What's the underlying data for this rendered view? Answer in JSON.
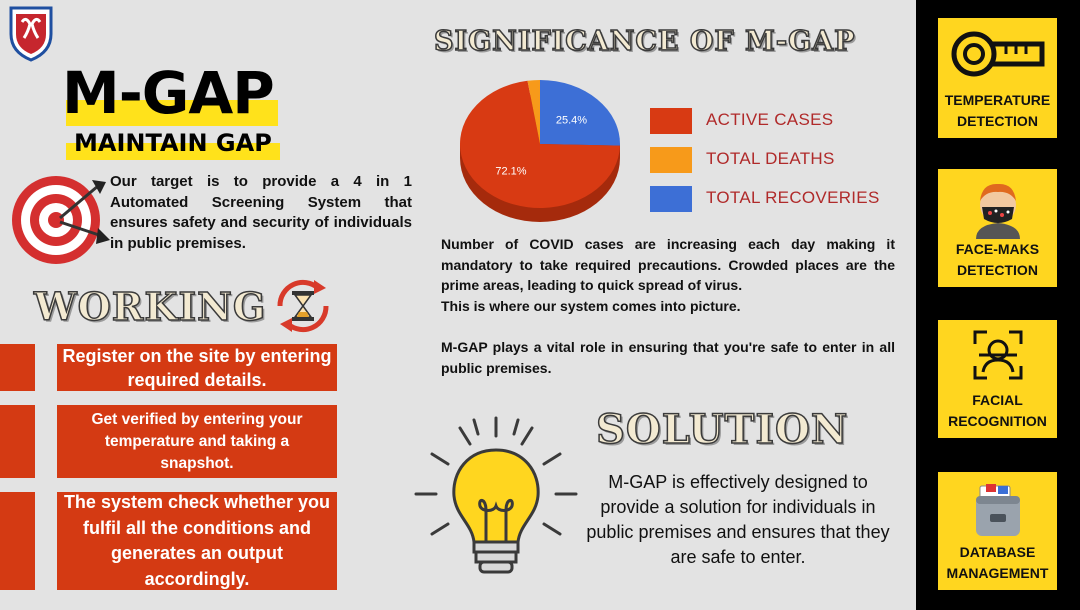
{
  "header": {
    "title": "M-GAP",
    "subtitle": "MAINTAIN GAP",
    "intro": "Our target is to provide a 4 in 1 Automated Screening System that ensures safety and security of individuals in public premises."
  },
  "icons": {
    "logo": "university-crest-icon",
    "target": "target-icon",
    "hourglass": "hourglass-cycle-icon",
    "bulb": "lightbulb-icon",
    "thermometer": "thermometer-icon",
    "masked_face": "masked-face-icon",
    "face_scan": "face-scan-icon",
    "database": "database-icon"
  },
  "working": {
    "heading": "WORKING",
    "steps": [
      {
        "text": "Register on the site by entering required details."
      },
      {
        "text": "Get verified by entering your temperature and taking a snapshot."
      },
      {
        "text": "The system check whether you fulfil all the conditions and generates an output accordingly."
      }
    ]
  },
  "significance": {
    "heading": "SIGNIFICANCE OF M-GAP",
    "para1": "Number of COVID cases are increasing each day making it mandatory to take required precautions. Crowded places are the prime areas, leading to quick spread of virus.",
    "para2": "This is where our system comes into picture.",
    "para3": "M-GAP plays a vital role in ensuring that you're safe to enter in all public premises."
  },
  "chart_data": {
    "type": "pie",
    "categories": [
      "ACTIVE CASES",
      "TOTAL DEATHS",
      "TOTAL RECOVERIES"
    ],
    "values": [
      72.1,
      2.5,
      25.4
    ],
    "data_labels": [
      "72.1%",
      "",
      "25.4%"
    ],
    "colors": [
      "#d83a13",
      "#f79a1a",
      "#3d6fd6"
    ],
    "legend": "right"
  },
  "solution": {
    "heading": "SOLUTION",
    "text": "M-GAP is effectively designed to provide a solution for individuals in public premises and ensures that they are safe to enter."
  },
  "features": [
    {
      "label": "TEMPERATURE DETECTION"
    },
    {
      "label": "FACE-MAKS DETECTION"
    },
    {
      "label": "FACIAL RECOGNITION"
    },
    {
      "label": "DATABASE MANAGEMENT"
    }
  ],
  "colors": {
    "accent_yellow": "#ffd61f",
    "accent_red": "#d43a13",
    "background": "#e3e3e3"
  }
}
